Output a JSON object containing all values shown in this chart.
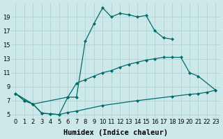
{
  "bg_color": "#cde8e8",
  "grid_color": "#aacfcf",
  "line_color": "#006b6b",
  "xlabel": "Humidex (Indice chaleur)",
  "xlabel_fontsize": 7.5,
  "tick_fontsize": 6,
  "ylim": [
    4.5,
    21.0
  ],
  "xlim": [
    -0.5,
    23.5
  ],
  "yticks": [
    5,
    7,
    9,
    11,
    13,
    15,
    17,
    19
  ],
  "xticks": [
    0,
    1,
    2,
    3,
    4,
    5,
    6,
    7,
    8,
    9,
    10,
    11,
    12,
    13,
    14,
    15,
    16,
    17,
    18,
    19,
    20,
    21,
    22,
    23
  ],
  "curve1_x": [
    0,
    1,
    2,
    3,
    4,
    5,
    6,
    7,
    8,
    9,
    10,
    11,
    12,
    13,
    14,
    15,
    16,
    17,
    18
  ],
  "curve1_y": [
    8.0,
    7.0,
    6.5,
    5.2,
    5.1,
    5.0,
    7.5,
    7.5,
    15.5,
    18.0,
    20.3,
    19.0,
    19.5,
    19.3,
    19.0,
    19.2,
    17.0,
    16.0,
    15.8
  ],
  "curve2_x": [
    0,
    2,
    6,
    7,
    8,
    9,
    10,
    11,
    12,
    13,
    14,
    15,
    16,
    17,
    18,
    19,
    20,
    21,
    23
  ],
  "curve2_y": [
    8.0,
    6.5,
    7.5,
    9.5,
    10.0,
    10.5,
    11.0,
    11.3,
    11.8,
    12.2,
    12.5,
    12.8,
    13.0,
    13.2,
    13.2,
    13.2,
    11.0,
    10.5,
    8.5
  ],
  "curve3_x": [
    0,
    1,
    2,
    3,
    4,
    5,
    6,
    7,
    10,
    14,
    18,
    20,
    21,
    22,
    23
  ],
  "curve3_y": [
    8.0,
    7.0,
    6.5,
    5.2,
    5.1,
    5.0,
    5.3,
    5.5,
    6.3,
    7.0,
    7.6,
    7.9,
    8.0,
    8.2,
    8.5
  ],
  "marker_size": 2.5,
  "line_width": 0.9,
  "figsize": [
    3.2,
    2.0
  ],
  "dpi": 100
}
